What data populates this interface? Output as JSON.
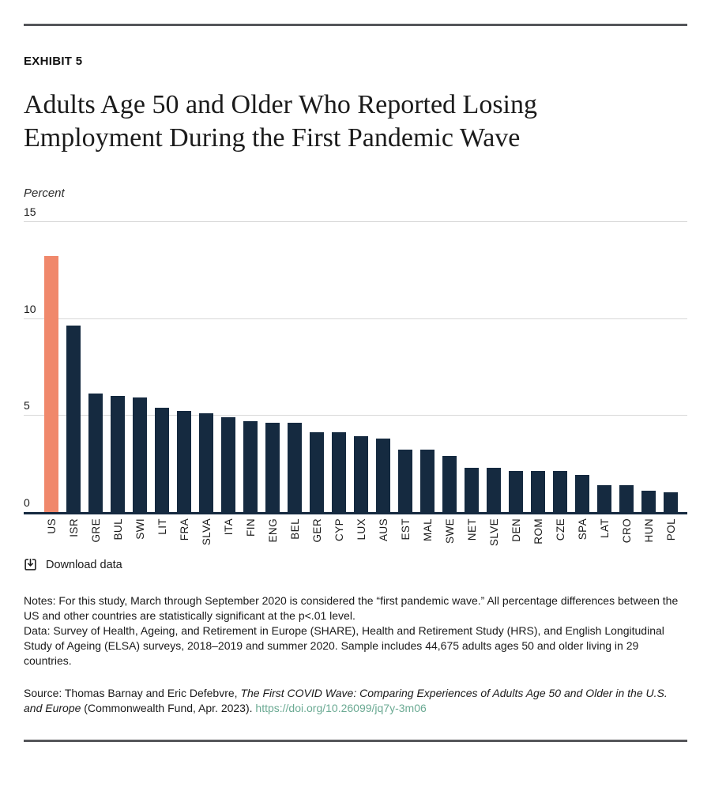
{
  "header": {
    "exhibit_label": "EXHIBIT 5",
    "title": "Adults Age 50 and Older Who Reported Losing Employment During the First Pandemic Wave",
    "unit_label": "Percent",
    "rule_color": "#55565a"
  },
  "chart_data": {
    "type": "bar",
    "title": "Adults Age 50 and Older Who Reported Losing Employment During the First Pandemic Wave",
    "xlabel": "",
    "ylabel": "Percent",
    "ylim": [
      0,
      15
    ],
    "yticks": [
      0,
      5,
      10,
      15
    ],
    "grid": true,
    "legend": false,
    "categories": [
      "US",
      "ISR",
      "GRE",
      "BUL",
      "SWI",
      "LIT",
      "FRA",
      "SLVA",
      "ITA",
      "FIN",
      "ENG",
      "BEL",
      "GER",
      "CYP",
      "LUX",
      "AUS",
      "EST",
      "MAL",
      "SWE",
      "NET",
      "SLVE",
      "DEN",
      "ROM",
      "CZE",
      "SPA",
      "LAT",
      "CRO",
      "HUN",
      "POL"
    ],
    "values": [
      13.2,
      9.6,
      6.1,
      6.0,
      5.9,
      5.4,
      5.2,
      5.1,
      4.9,
      4.7,
      4.6,
      4.6,
      4.1,
      4.1,
      3.9,
      3.8,
      3.2,
      3.2,
      2.9,
      2.3,
      2.3,
      2.1,
      2.1,
      2.1,
      1.9,
      1.4,
      1.4,
      1.1,
      1.0
    ],
    "bar_color": "#152a40",
    "highlight_category": "US",
    "highlight_color": "#f0886b",
    "axis_color": "#152a40",
    "gridline_color": "#d8d8d8"
  },
  "download": {
    "label": "Download data",
    "icon": "download-icon"
  },
  "notes": {
    "notes_text": "Notes: For this study, March through September 2020 is considered the “first pandemic wave.” All percentage differences between the US and other countries are statistically significant at the p<.01 level.",
    "data_text": "Data: Survey of Health, Ageing, and Retirement in Europe (SHARE), Health and Retirement Study (HRS), and English Longitudinal Study of Ageing (ELSA) surveys, 2018–2019 and summer 2020. Sample includes 44,675 adults ages 50 and older living in 29 countries."
  },
  "source": {
    "prefix": "Source: Thomas Barnay and Eric Defebvre, ",
    "work_title": "The First COVID Wave: Comparing Experiences of Adults Age 50 and Older in the U.S. and Europe",
    "suffix": " (Commonwealth Fund, Apr. 2023). ",
    "link_text": "https://doi.org/10.26099/jq7y-3m06",
    "link_color": "#6baa93"
  }
}
